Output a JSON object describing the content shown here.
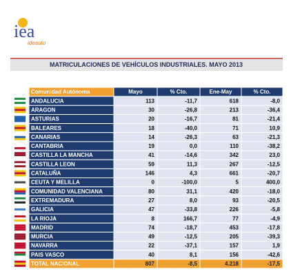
{
  "header": {
    "logo": "iea",
    "logo_sub": "ideauto",
    "title": "MATRICULACIONES DE VEHÍCULOS INDUSTRIALES. MAYO 2013"
  },
  "table": {
    "columns": [
      "Comunidad Autónoma",
      "Mayo",
      "% Cto.",
      "Ene-May",
      "% Cto."
    ],
    "rows": [
      [
        "ANDALUCIA",
        "113",
        "-11,7",
        "618",
        "-8,0"
      ],
      [
        "ARAGON",
        "30",
        "-26,8",
        "213",
        "-36,4"
      ],
      [
        "ASTURIAS",
        "20",
        "-16,7",
        "81",
        "-21,4"
      ],
      [
        "BALEARES",
        "18",
        "-40,0",
        "71",
        "10,9"
      ],
      [
        "CANARIAS",
        "14",
        "-26,3",
        "63",
        "-21,3"
      ],
      [
        "CANTABRIA",
        "19",
        "0,0",
        "110",
        "-38,2"
      ],
      [
        "CASTILLA LA MANCHA",
        "41",
        "-14,6",
        "342",
        "23,0"
      ],
      [
        "CASTILLA LEON",
        "59",
        "11,3",
        "267",
        "-12,5"
      ],
      [
        "CATALUÑA",
        "146",
        "4,3",
        "661",
        "-20,7"
      ],
      [
        "CEUTA Y MELILLA",
        "0",
        "-100,0",
        "5",
        "400,0"
      ],
      [
        "COMUNIDAD VALENCIANA",
        "80",
        "31,1",
        "420",
        "-18,0"
      ],
      [
        "EXTREMADURA",
        "27",
        "8,0",
        "93",
        "-20,5"
      ],
      [
        "GALICIA",
        "47",
        "-33,8",
        "226",
        "-5,8"
      ],
      [
        "LA RIOJA",
        "8",
        "166,7",
        "77",
        "-4,9"
      ],
      [
        "MADRID",
        "74",
        "-18,7",
        "453",
        "-17,8"
      ],
      [
        "MURCIA",
        "49",
        "-12,5",
        "205",
        "-39,3"
      ],
      [
        "NAVARRA",
        "22",
        "-37,1",
        "157",
        "1,9"
      ],
      [
        "PAIS VASCO",
        "40",
        "8,1",
        "156",
        "-42,6"
      ]
    ],
    "total": [
      "TOTAL NACIONAL",
      "807",
      "-8,5",
      "4.218",
      "-17,5"
    ]
  }
}
